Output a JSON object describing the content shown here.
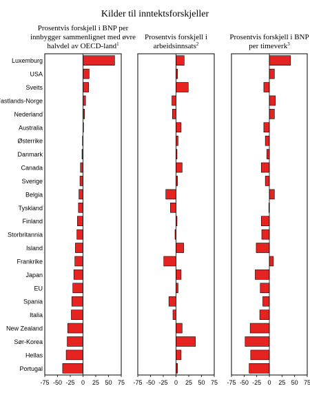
{
  "chart_data": {
    "type": "bar",
    "title": "Kilder til inntektsforskjeller",
    "categories": [
      "Luxemburg",
      "USA",
      "Sveits",
      "Fastlands-Norge",
      "Nederland",
      "Australia",
      "Østerrike",
      "Danmark",
      "Canada",
      "Sverige",
      "Belgia",
      "Tyskland",
      "Finland",
      "Storbritannia",
      "Island",
      "Frankrike",
      "Japan",
      "EU",
      "Spania",
      "Italia",
      "New Zealand",
      "Sør-Korea",
      "Hellas",
      "Portugal"
    ],
    "panels": [
      {
        "title_lines": [
          "Prosentvis forskjell i BNP per",
          "innbygger sammenlignet med øvre",
          "halvdel av OECD-land"
        ],
        "footnote": "1",
        "xlim": [
          -75,
          75
        ],
        "ticks": [
          "-75",
          "-50",
          "-25",
          "0",
          "25",
          "50",
          "75"
        ],
        "values": [
          62,
          12,
          11,
          5,
          3,
          1,
          -1,
          -2,
          -5,
          -6,
          -8,
          -9,
          -11,
          -12,
          -15,
          -16,
          -18,
          -20,
          -22,
          -23,
          -30,
          -31,
          -33,
          -40
        ]
      },
      {
        "title_lines": [
          "Prosentvis forskjell i",
          "arbeidsinnsats"
        ],
        "footnote": "2",
        "xlim": [
          -75,
          75
        ],
        "ticks": [
          "-75",
          "-50",
          "-25",
          "0",
          "25",
          "50",
          "75"
        ],
        "values": [
          16,
          3,
          24,
          -8,
          -7,
          10,
          4,
          2,
          12,
          3,
          -20,
          -11,
          2,
          -2,
          15,
          -24,
          10,
          4,
          -14,
          -6,
          12,
          38,
          10,
          3
        ]
      },
      {
        "title_lines": [
          "Prosentvis forskjell i BNP",
          "per timeverk"
        ],
        "footnote": "3",
        "xlim": [
          -75,
          75
        ],
        "ticks": [
          "-75",
          "-50",
          "-25",
          "0",
          "25",
          "50",
          "75"
        ],
        "values": [
          42,
          10,
          -11,
          12,
          10,
          -11,
          -8,
          -5,
          -16,
          -8,
          10,
          -1,
          -16,
          -15,
          -26,
          8,
          -28,
          -18,
          -13,
          -19,
          -38,
          -48,
          -37,
          -40
        ]
      }
    ],
    "bar_color": "#e52320"
  }
}
